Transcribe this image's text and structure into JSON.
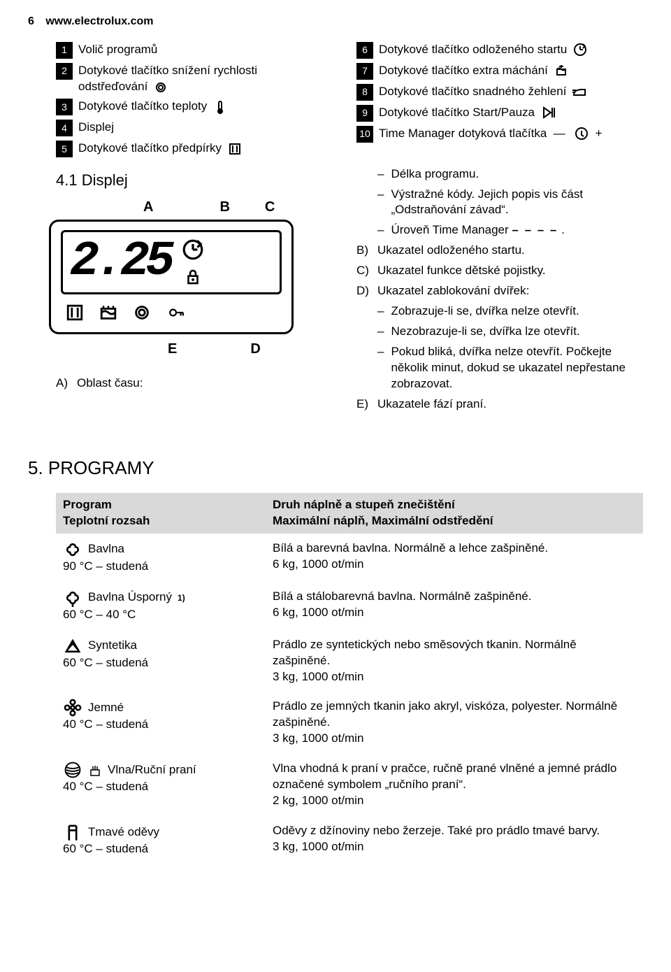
{
  "header": {
    "page": "6",
    "url": "www.electrolux.com"
  },
  "legend_left": [
    {
      "n": "1",
      "text": "Volič programů"
    },
    {
      "n": "2",
      "text": "Dotykové tlačítko snížení rychlosti odstřeďování"
    },
    {
      "n": "3",
      "text": "Dotykové tlačítko teploty"
    },
    {
      "n": "4",
      "text": "Displej"
    },
    {
      "n": "5",
      "text": "Dotykové tlačítko předpírky"
    }
  ],
  "legend_right": [
    {
      "n": "6",
      "text": "Dotykové tlačítko odloženého startu"
    },
    {
      "n": "7",
      "text": "Dotykové tlačítko extra máchání"
    },
    {
      "n": "8",
      "text": "Dotykové tlačítko snadného žehlení"
    },
    {
      "n": "9",
      "text": "Dotykové tlačítko Start/Pauza"
    },
    {
      "n": "10",
      "text": "Time Manager dotyková tlačítka"
    }
  ],
  "section_display": "4.1 Displej",
  "display_value": "2.25",
  "display_labels": {
    "A": "A",
    "B": "B",
    "C": "C",
    "D": "D",
    "E": "E"
  },
  "caption_A": "Oblast času:",
  "right_notes": {
    "initial_dashes": [
      "Délka programu.",
      "Výstražné kódy. Jejich popis vis část „Odstraňování závad“.",
      "Úroveň Time Manager"
    ],
    "time_manager_icon": "– – – –",
    "B": "Ukazatel odloženého startu.",
    "C": "Ukazatel funkce dětské pojistky.",
    "D": "Ukazatel zablokování dvířek:",
    "D_dashes": [
      "Zobrazuje-li se, dvířka nelze otevřít.",
      "Nezobrazuje-li se, dvířka lze otevřít.",
      "Pokud bliká, dvířka nelze otevřít. Počkejte několik minut, dokud se ukazatel nepřestane zobrazovat."
    ],
    "E": "Ukazatele fází praní."
  },
  "programs_heading": "5. PROGRAMY",
  "programs_table": {
    "header_left_1": "Program",
    "header_left_2": "Teplotní rozsah",
    "header_right_1": "Druh náplně a stupeň znečištění",
    "header_right_2": "Maximální náplň, Maximální odstředění",
    "rows": [
      {
        "name": "Bavlna",
        "range": "90 °C – studená",
        "sup": "",
        "desc": "Bílá a barevná bavlna. Normálně a lehce zašpiněné.",
        "spec": "6 kg, 1000 ot/min"
      },
      {
        "name": "Bavlna Úsporný",
        "range": "60 °C – 40 °C",
        "sup": "1)",
        "desc": "Bílá a stálobarevná bavlna. Normálně zašpiněné.",
        "spec": "6 kg, 1000 ot/min"
      },
      {
        "name": "Syntetika",
        "range": "60 °C – studená",
        "sup": "",
        "desc": "Prádlo ze syntetických nebo směsových tkanin. Normálně zašpiněné.",
        "spec": "3 kg, 1000 ot/min"
      },
      {
        "name": "Jemné",
        "range": "40 °C – studená",
        "sup": "",
        "desc": "Prádlo ze jemných tkanin jako akryl, viskóza, polyester. Normálně zašpiněné.",
        "spec": "3 kg, 1000 ot/min"
      },
      {
        "name": "Vlna/Ruční praní",
        "range": "40 °C – studená",
        "sup": "",
        "desc": "Vlna vhodná k praní v pračce, ručně prané vlněné a jemné prádlo označené symbolem „ručního praní“.",
        "spec": "2 kg, 1000 ot/min"
      },
      {
        "name": "Tmavé oděvy",
        "range": "60 °C – studená",
        "sup": "",
        "desc": "Oděvy z džínoviny nebo žerzeje. Také pro prádlo tmavé barvy.",
        "spec": "3 kg, 1000 ot/min"
      }
    ]
  },
  "colors": {
    "text": "#000000",
    "bg": "#ffffff",
    "table_header_bg": "#d9d9d9",
    "numbox_bg": "#000000"
  }
}
